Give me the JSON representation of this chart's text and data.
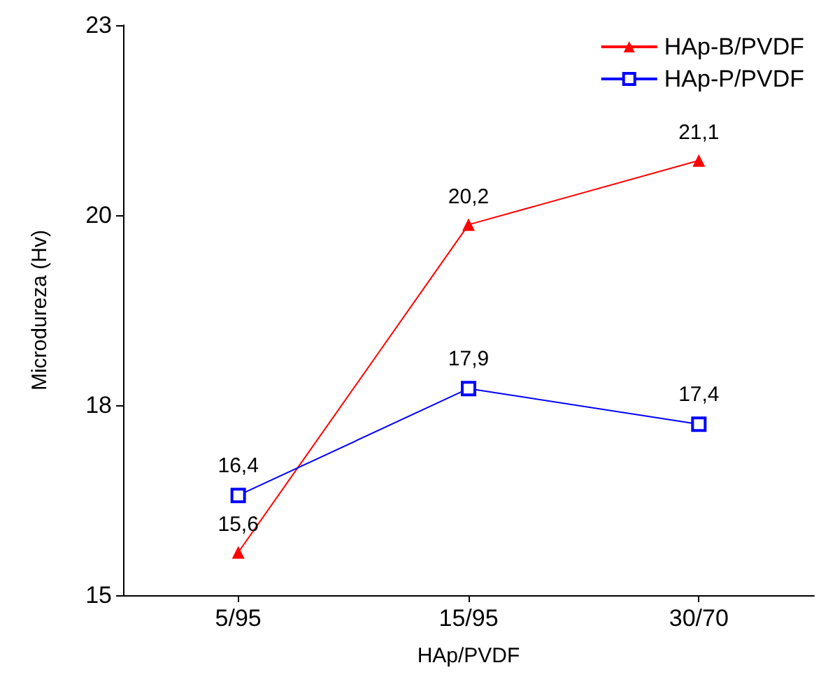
{
  "chart_data": {
    "type": "line",
    "xlabel": "HAp/PVDF",
    "ylabel": "Microdureza (Hv)",
    "categories": [
      "5/95",
      "15/95",
      "30/70"
    ],
    "series": [
      {
        "name": "HAp-B/PVDF",
        "color": "#ff0000",
        "marker": "triangle",
        "values": [
          15.6,
          20.2,
          21.1
        ],
        "value_labels": [
          "15,6",
          "20,2",
          "21,1"
        ]
      },
      {
        "name": "HAp-P/PVDF",
        "color": "#0000ff",
        "marker": "square",
        "values": [
          16.4,
          17.9,
          17.4
        ],
        "value_labels": [
          "16,4",
          "17,9",
          "17,4"
        ]
      }
    ],
    "ylim": [
      15,
      23
    ],
    "yticks": [
      15,
      {
        "value": 17.667,
        "label": "18"
      },
      {
        "value": 20.333,
        "label": "20"
      },
      23
    ],
    "legend": "top right",
    "grid": false
  }
}
